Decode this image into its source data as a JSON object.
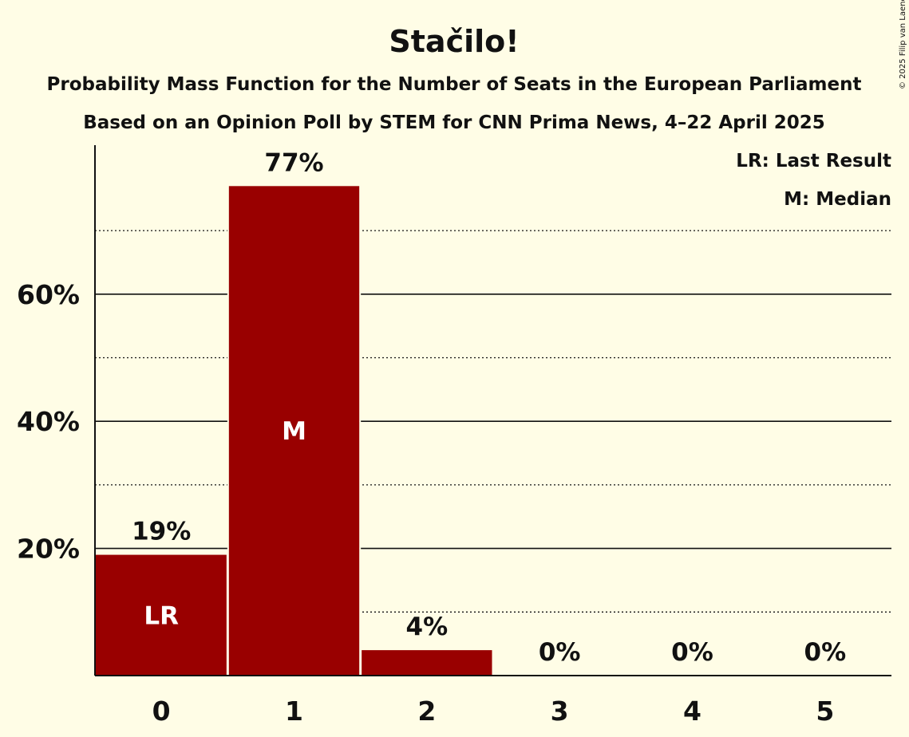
{
  "title": "Stačilo!",
  "subtitle_1": "Probability Mass Function for the Number of Seats in the European Parliament",
  "subtitle_2": "Based on an Opinion Poll by STEM for CNN Prima News, 4–22 April 2025",
  "copyright": "© 2025 Filip van Laenen",
  "legend": {
    "last_result": "LR: Last Result",
    "median": "M: Median"
  },
  "colors": {
    "background": "#fffde6",
    "bar": "#990000",
    "text": "#111111"
  },
  "chart_data": {
    "type": "bar",
    "title": "Stačilo!",
    "xlabel": "",
    "ylabel": "",
    "categories": [
      "0",
      "1",
      "2",
      "3",
      "4",
      "5"
    ],
    "values": [
      19,
      77,
      4,
      0,
      0,
      0
    ],
    "value_labels": [
      "19%",
      "77%",
      "4%",
      "0%",
      "0%",
      "0%"
    ],
    "inner_labels": [
      "LR",
      "M",
      "",
      "",
      "",
      ""
    ],
    "y_ticks": [
      {
        "value": 20,
        "label": "20%"
      },
      {
        "value": 40,
        "label": "40%"
      },
      {
        "value": 60,
        "label": "60%"
      }
    ],
    "minor_gridlines": [
      10,
      30,
      50,
      70
    ],
    "ylim": [
      0,
      83
    ],
    "grid": true,
    "legend_position": "top-right"
  }
}
